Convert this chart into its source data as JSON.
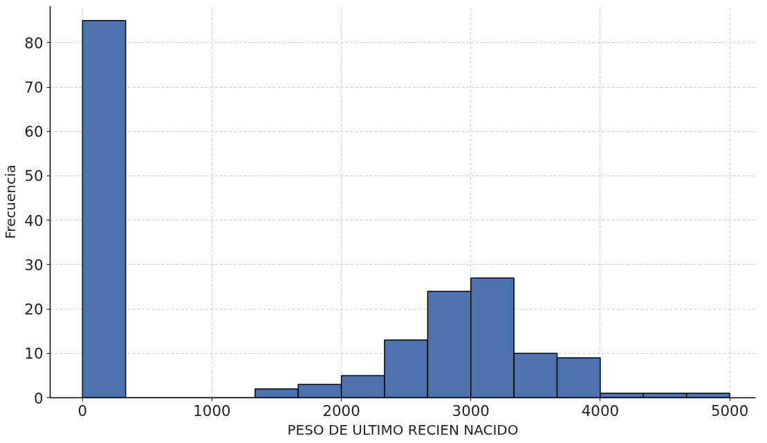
{
  "chart_data": {
    "type": "histogram",
    "xlabel": "PESO DE ULTIMO RECIEN NACIDO",
    "ylabel": "Frecuencia",
    "bins": [
      0,
      333.33,
      666.67,
      1000,
      1333.33,
      1666.67,
      2000,
      2333.33,
      2666.67,
      3000,
      3333.33,
      3666.67,
      4000,
      4333.33,
      4666.67,
      5000
    ],
    "values": [
      85,
      0,
      0,
      0,
      2,
      3,
      5,
      13,
      24,
      27,
      10,
      9,
      1,
      1,
      1
    ],
    "color": "#4c72b0",
    "xlim": [
      -250,
      5200
    ],
    "ylim": [
      0,
      88.3
    ],
    "xticks": [
      0,
      1000,
      2000,
      3000,
      4000,
      5000
    ],
    "yticks": [
      0,
      10,
      20,
      30,
      40,
      50,
      60,
      70,
      80
    ],
    "grid": true
  }
}
